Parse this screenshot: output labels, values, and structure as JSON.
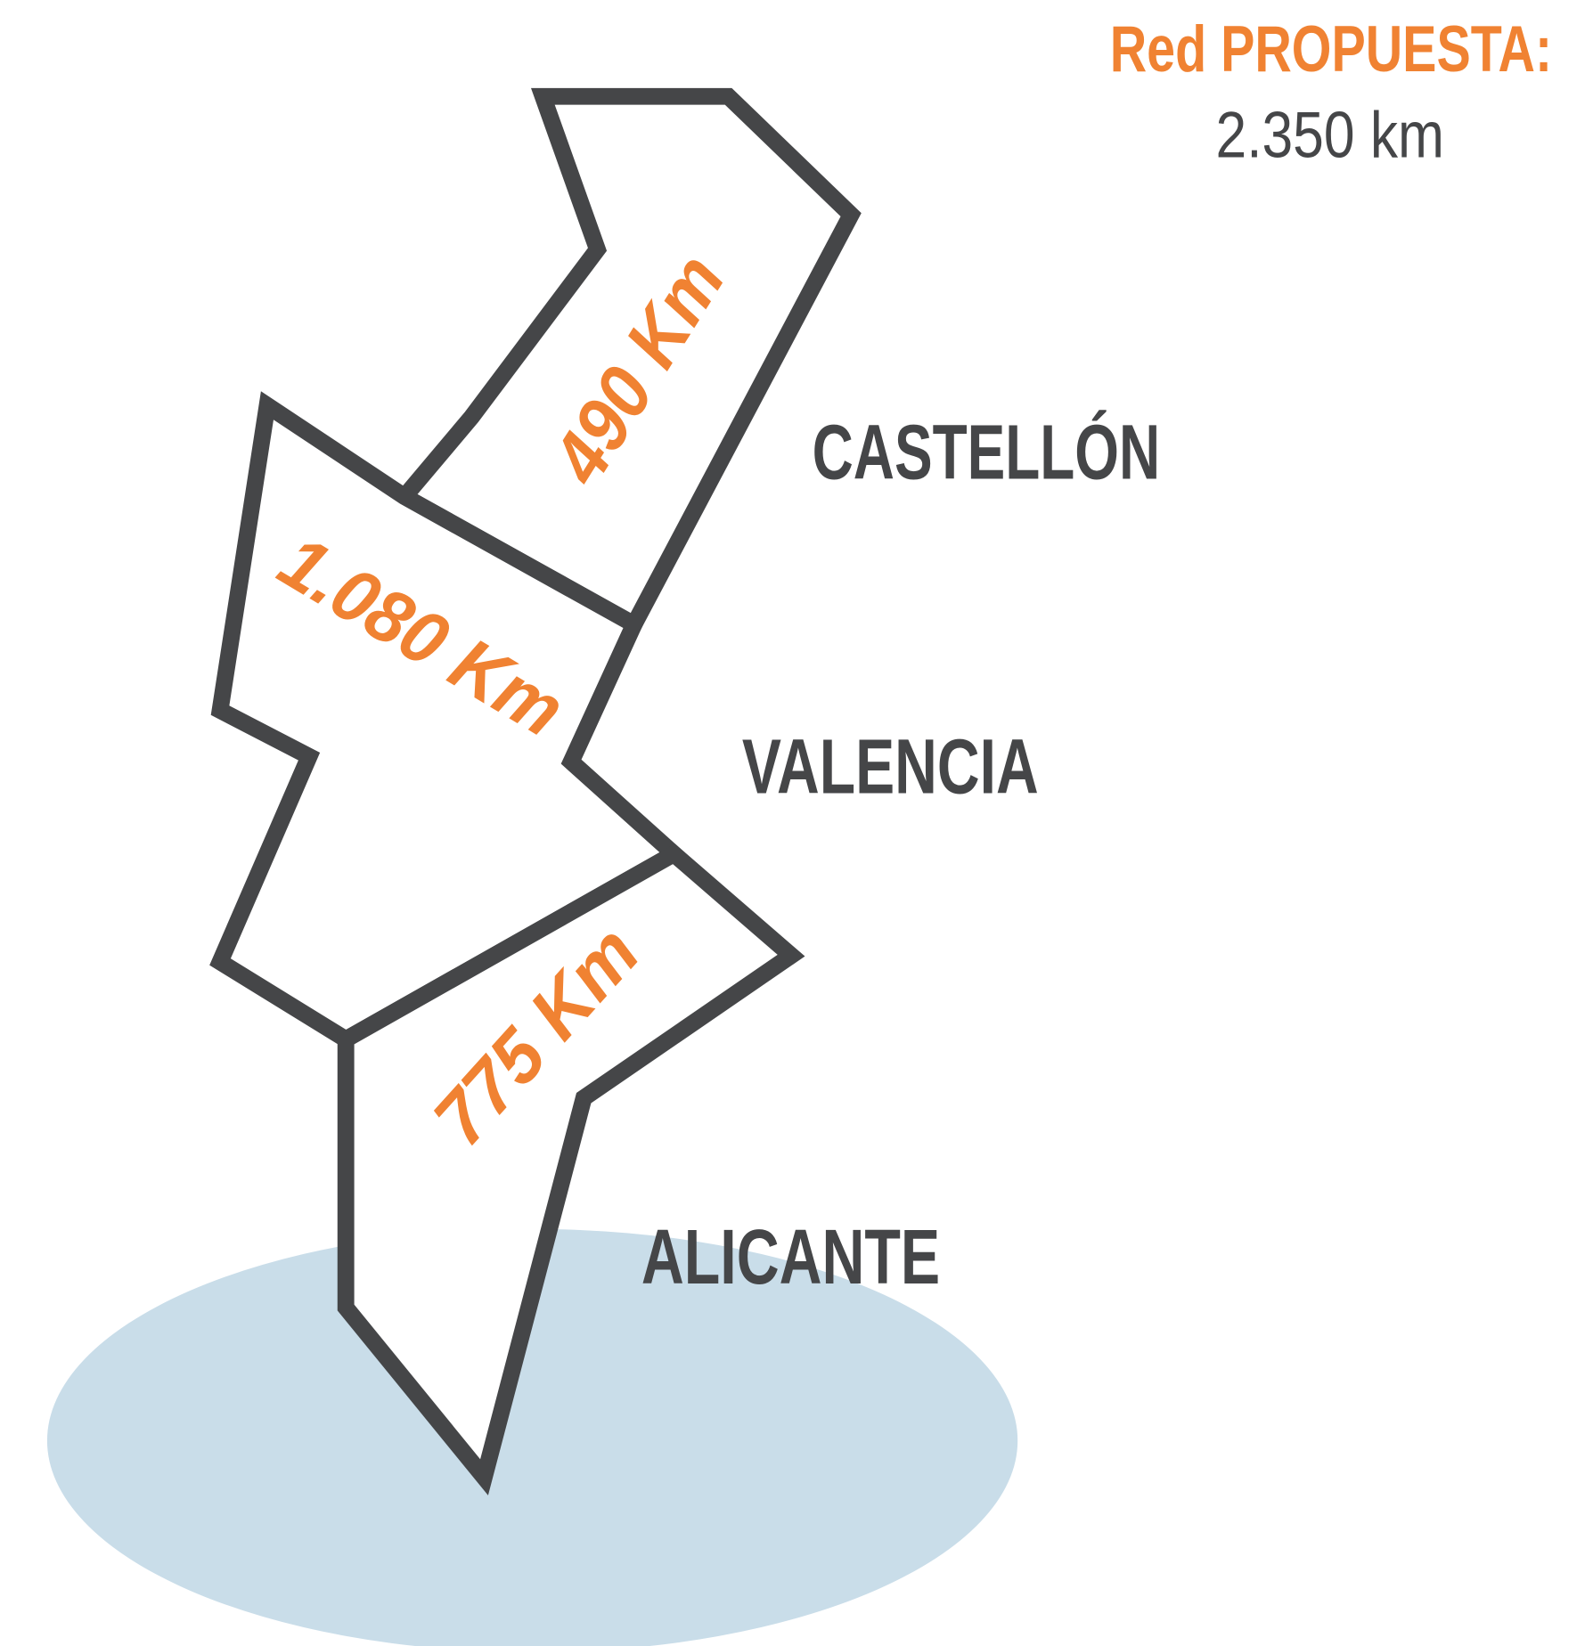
{
  "header": {
    "title": "Red PROPUESTA:",
    "total": "2.350 km"
  },
  "regions": [
    {
      "name": "CASTELLÓN",
      "distance": "490 Km"
    },
    {
      "name": "VALENCIA",
      "distance": "1.080 Km"
    },
    {
      "name": "ALICANTE",
      "distance": "775 Km"
    }
  ]
}
